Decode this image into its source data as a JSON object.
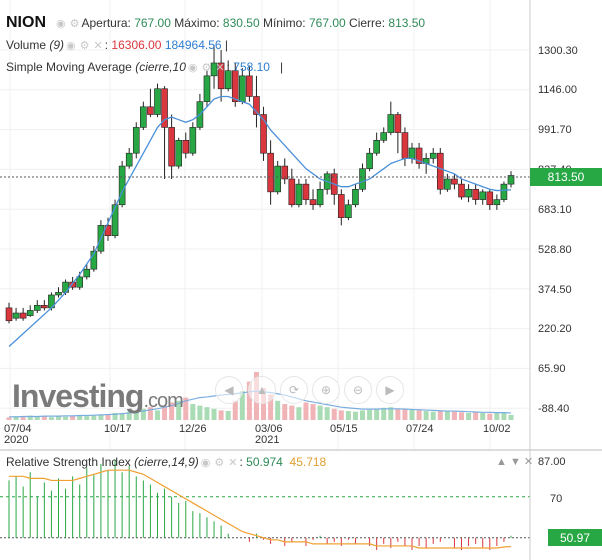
{
  "header": {
    "symbol": "NION",
    "open_label": "Apertura:",
    "open": "767.00",
    "high_label": "Máximo:",
    "high": "830.50",
    "low_label": "Mínimo:",
    "low": "767.00",
    "close_label": "Cierre:",
    "close": "813.50"
  },
  "volume_legend": {
    "label": "Volume",
    "param": "(9)",
    "value1": "16306.00",
    "value2": "184964.56"
  },
  "sma_legend": {
    "label": "Simple Moving Average",
    "param": "(cierre,10",
    "value": "758.10"
  },
  "price_axis": [
    "1300.30",
    "1146.00",
    "991.70",
    "837.40",
    "683.10",
    "528.80",
    "374.50",
    "220.20",
    "65.90",
    "-88.40"
  ],
  "last_price": "813.50",
  "date_labels": [
    {
      "top": "07/04",
      "bottom": "2020"
    },
    {
      "top": "10/17",
      "bottom": ""
    },
    {
      "top": "12/26",
      "bottom": ""
    },
    {
      "top": "03/06",
      "bottom": "2021"
    },
    {
      "top": "05/15",
      "bottom": ""
    },
    {
      "top": "07/24",
      "bottom": ""
    },
    {
      "top": "10/02",
      "bottom": ""
    }
  ],
  "watermark": {
    "main": "Investing",
    "suffix": ".com"
  },
  "rsi": {
    "label": "Relative Strength Index",
    "param": "(cierre,14,9)",
    "value1": "50.974",
    "value2": "45.718",
    "axis": [
      "87.00",
      "70"
    ],
    "last": "50.97"
  },
  "colors": {
    "up": "#28a745",
    "down": "#d9363e",
    "sma": "#4a90d9",
    "rsi_ma": "#f0a030"
  },
  "icons": [
    "eye-icon",
    "gear-icon",
    "close-icon",
    "arrow-left-icon",
    "arrow-up-icon",
    "arrow-down-icon",
    "arrow-right-icon"
  ],
  "chart_data": {
    "type": "candlestick",
    "ylim": [
      -88.4,
      1350
    ],
    "candles": [
      [
        300,
        250,
        320,
        240
      ],
      [
        260,
        280,
        300,
        250
      ],
      [
        280,
        260,
        300,
        250
      ],
      [
        270,
        290,
        310,
        265
      ],
      [
        290,
        310,
        330,
        280
      ],
      [
        310,
        300,
        330,
        290
      ],
      [
        300,
        350,
        360,
        290
      ],
      [
        350,
        360,
        380,
        340
      ],
      [
        360,
        400,
        410,
        350
      ],
      [
        400,
        380,
        420,
        370
      ],
      [
        380,
        420,
        440,
        370
      ],
      [
        420,
        450,
        470,
        410
      ],
      [
        450,
        520,
        540,
        440
      ],
      [
        520,
        620,
        640,
        510
      ],
      [
        620,
        580,
        650,
        560
      ],
      [
        580,
        700,
        720,
        570
      ],
      [
        700,
        850,
        870,
        690
      ],
      [
        850,
        900,
        920,
        840
      ],
      [
        900,
        1000,
        1020,
        880
      ],
      [
        1000,
        1080,
        1100,
        990
      ],
      [
        1080,
        1050,
        1150,
        1040
      ],
      [
        1050,
        1150,
        1170,
        1040
      ],
      [
        1150,
        1000,
        1160,
        800
      ],
      [
        1000,
        850,
        1050,
        800
      ],
      [
        850,
        950,
        960,
        840
      ],
      [
        950,
        900,
        980,
        880
      ],
      [
        900,
        1000,
        1020,
        890
      ],
      [
        1000,
        1100,
        1130,
        990
      ],
      [
        1100,
        1200,
        1220,
        1080
      ],
      [
        1200,
        1250,
        1320,
        1150
      ],
      [
        1250,
        1150,
        1300,
        1100
      ],
      [
        1150,
        1220,
        1260,
        1140
      ],
      [
        1220,
        1100,
        1250,
        1080
      ],
      [
        1100,
        1200,
        1230,
        1090
      ],
      [
        1200,
        1120,
        1240,
        1100
      ],
      [
        1120,
        1050,
        1200,
        1000
      ],
      [
        1050,
        900,
        1080,
        870
      ],
      [
        900,
        750,
        950,
        700
      ],
      [
        750,
        850,
        870,
        740
      ],
      [
        850,
        800,
        880,
        780
      ],
      [
        800,
        700,
        840,
        690
      ],
      [
        700,
        780,
        800,
        690
      ],
      [
        780,
        720,
        800,
        700
      ],
      [
        720,
        700,
        760,
        680
      ],
      [
        700,
        760,
        790,
        690
      ],
      [
        760,
        820,
        830,
        740
      ],
      [
        820,
        740,
        840,
        700
      ],
      [
        740,
        650,
        760,
        620
      ],
      [
        650,
        700,
        720,
        640
      ],
      [
        700,
        760,
        780,
        690
      ],
      [
        760,
        840,
        860,
        750
      ],
      [
        840,
        900,
        920,
        830
      ],
      [
        900,
        950,
        980,
        890
      ],
      [
        950,
        980,
        1000,
        940
      ],
      [
        980,
        1050,
        1100,
        970
      ],
      [
        1050,
        980,
        1060,
        900
      ],
      [
        980,
        880,
        1000,
        850
      ],
      [
        880,
        920,
        940,
        860
      ],
      [
        920,
        860,
        940,
        840
      ],
      [
        860,
        880,
        900,
        820
      ],
      [
        880,
        900,
        920,
        860
      ],
      [
        900,
        760,
        920,
        740
      ],
      [
        760,
        800,
        820,
        750
      ],
      [
        800,
        780,
        820,
        760
      ],
      [
        780,
        730,
        800,
        720
      ],
      [
        730,
        760,
        780,
        710
      ],
      [
        760,
        720,
        780,
        700
      ],
      [
        720,
        750,
        760,
        700
      ],
      [
        750,
        700,
        760,
        680
      ],
      [
        700,
        720,
        740,
        680
      ],
      [
        720,
        780,
        790,
        710
      ],
      [
        780,
        813.5,
        830.5,
        767
      ]
    ],
    "sma": [
      150,
      175,
      200,
      225,
      250,
      275,
      300,
      330,
      360,
      395,
      430,
      470,
      510,
      570,
      630,
      690,
      750,
      800,
      850,
      900,
      950,
      1000,
      1030,
      1040,
      1030,
      1020,
      1030,
      1050,
      1080,
      1110,
      1120,
      1120,
      1110,
      1100,
      1090,
      1060,
      1030,
      990,
      960,
      930,
      900,
      870,
      840,
      820,
      800,
      790,
      780,
      770,
      770,
      780,
      790,
      800,
      820,
      840,
      860,
      870,
      880,
      880,
      870,
      860,
      850,
      840,
      830,
      820,
      800,
      790,
      780,
      770,
      760,
      755,
      756,
      758.1
    ],
    "volume": [
      8,
      12,
      9,
      14,
      10,
      11,
      9,
      12,
      10,
      13,
      15,
      12,
      14,
      16,
      18,
      22,
      20,
      25,
      28,
      35,
      40,
      30,
      45,
      55,
      60,
      70,
      50,
      45,
      40,
      35,
      30,
      28,
      60,
      90,
      120,
      150,
      100,
      80,
      60,
      50,
      45,
      40,
      55,
      50,
      45,
      40,
      35,
      30,
      28,
      26,
      30,
      32,
      35,
      38,
      40,
      36,
      34,
      32,
      30,
      28,
      26,
      30,
      28,
      26,
      24,
      22,
      24,
      22,
      20,
      22,
      24,
      16
    ],
    "vol_ma": [
      10,
      10,
      11,
      11,
      11,
      12,
      12,
      12,
      13,
      13,
      14,
      14,
      15,
      16,
      17,
      18,
      20,
      22,
      25,
      28,
      32,
      35,
      40,
      45,
      52,
      60,
      65,
      70,
      72,
      75,
      78,
      80,
      82,
      85,
      88,
      90,
      88,
      86,
      82,
      78,
      72,
      66,
      60,
      56,
      52,
      48,
      44,
      40,
      38,
      36,
      34,
      34,
      34,
      35,
      35,
      35,
      34,
      33,
      32,
      31,
      30,
      29,
      28,
      28,
      27,
      26,
      25,
      24,
      24,
      23,
      23,
      22
    ],
    "rsi": [
      78,
      80,
      75,
      82,
      70,
      77,
      73,
      79,
      74,
      80,
      76,
      84,
      81,
      86,
      83,
      88,
      82,
      85,
      80,
      78,
      76,
      72,
      74,
      70,
      67,
      68,
      63,
      62,
      60,
      58,
      56,
      52,
      50,
      50,
      48,
      52,
      49,
      47,
      50,
      46,
      48,
      50,
      46,
      49,
      51,
      47,
      48,
      46,
      49,
      47,
      50,
      46,
      44,
      47,
      45,
      48,
      46,
      44,
      46,
      45,
      47,
      48,
      50,
      45,
      44,
      46,
      47,
      45,
      44,
      46,
      48,
      50.974
    ],
    "rsi_ma": [
      80,
      80,
      80,
      79,
      79,
      79,
      78,
      78,
      78,
      78,
      79,
      80,
      81,
      82,
      83,
      83,
      83,
      83,
      82,
      81,
      79,
      77,
      75,
      73,
      71,
      69,
      67,
      65,
      63,
      61,
      59,
      57,
      55,
      53,
      52,
      51,
      50,
      49,
      49,
      48,
      48,
      48,
      48,
      47,
      47,
      47,
      47,
      47,
      47,
      47,
      47,
      47,
      46,
      46,
      46,
      46,
      46,
      46,
      45,
      45,
      45,
      45,
      45,
      45,
      45,
      45,
      45,
      45,
      45,
      45,
      45.5,
      45.718
    ],
    "rsi_ylim": [
      45,
      87
    ],
    "grid": true
  }
}
